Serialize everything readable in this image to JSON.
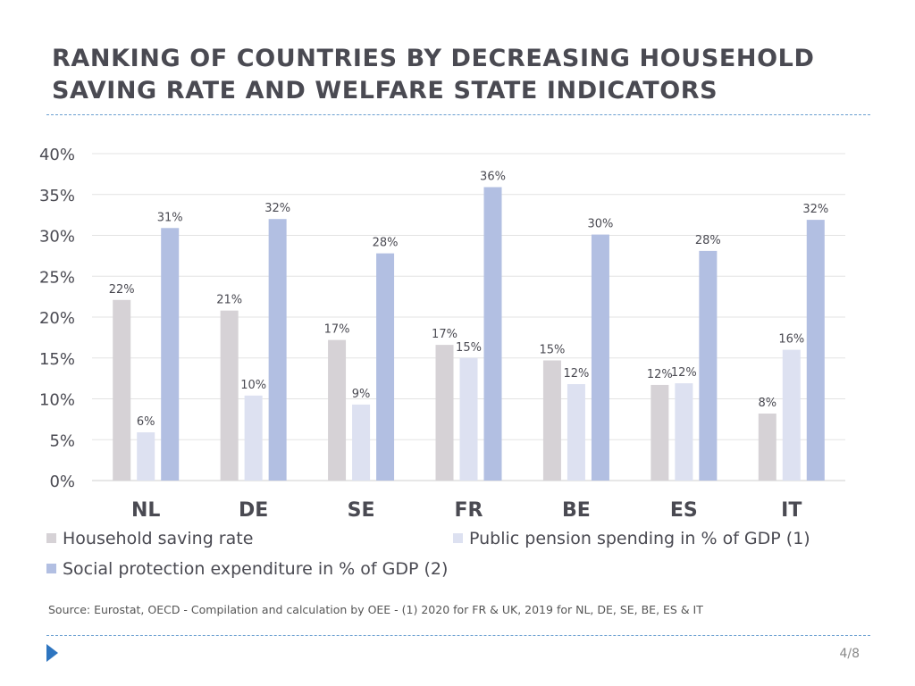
{
  "slide": {
    "title": "RANKING OF COUNTRIES BY DECREASING HOUSEHOLD SAVING RATE AND WELFARE STATE INDICATORS",
    "source": "Source: Eurostat, OECD - Compilation and calculation by OEE - (1) 2020 for FR & UK, 2019 for NL, DE, SE, BE, ES & IT",
    "page_number": "4/8",
    "accent_color": "#2e75c0"
  },
  "chart_data": {
    "type": "bar",
    "title": "",
    "xlabel": "",
    "ylabel": "",
    "categories": [
      "NL",
      "DE",
      "SE",
      "FR",
      "BE",
      "ES",
      "IT"
    ],
    "ylim": [
      0,
      40
    ],
    "yticks": [
      0,
      5,
      10,
      15,
      20,
      25,
      30,
      35,
      40
    ],
    "ytick_labels": [
      "0%",
      "5%",
      "10%",
      "15%",
      "20%",
      "25%",
      "30%",
      "35%",
      "40%"
    ],
    "grid": true,
    "legend_position": "bottom",
    "series": [
      {
        "name": "Household saving rate",
        "color": "#d6d2d6",
        "values": [
          22.1,
          20.8,
          17.2,
          16.6,
          14.7,
          11.7,
          8.2
        ],
        "labels": [
          "22%",
          "21%",
          "17%",
          "17%",
          "15%",
          "12%",
          "8%"
        ]
      },
      {
        "name": "Public pension spending in % of GDP (1)",
        "color": "#dde1f1",
        "values": [
          5.9,
          10.4,
          9.3,
          15.0,
          11.8,
          11.9,
          16.0
        ],
        "labels": [
          "6%",
          "10%",
          "9%",
          "15%",
          "12%",
          "12%",
          "16%"
        ]
      },
      {
        "name": "Social protection expenditure in % of GDP (2)",
        "color": "#b2bfe2",
        "values": [
          30.9,
          32.0,
          27.8,
          35.9,
          30.1,
          28.1,
          31.9
        ],
        "labels": [
          "31%",
          "32%",
          "28%",
          "36%",
          "30%",
          "28%",
          "32%"
        ]
      }
    ]
  }
}
